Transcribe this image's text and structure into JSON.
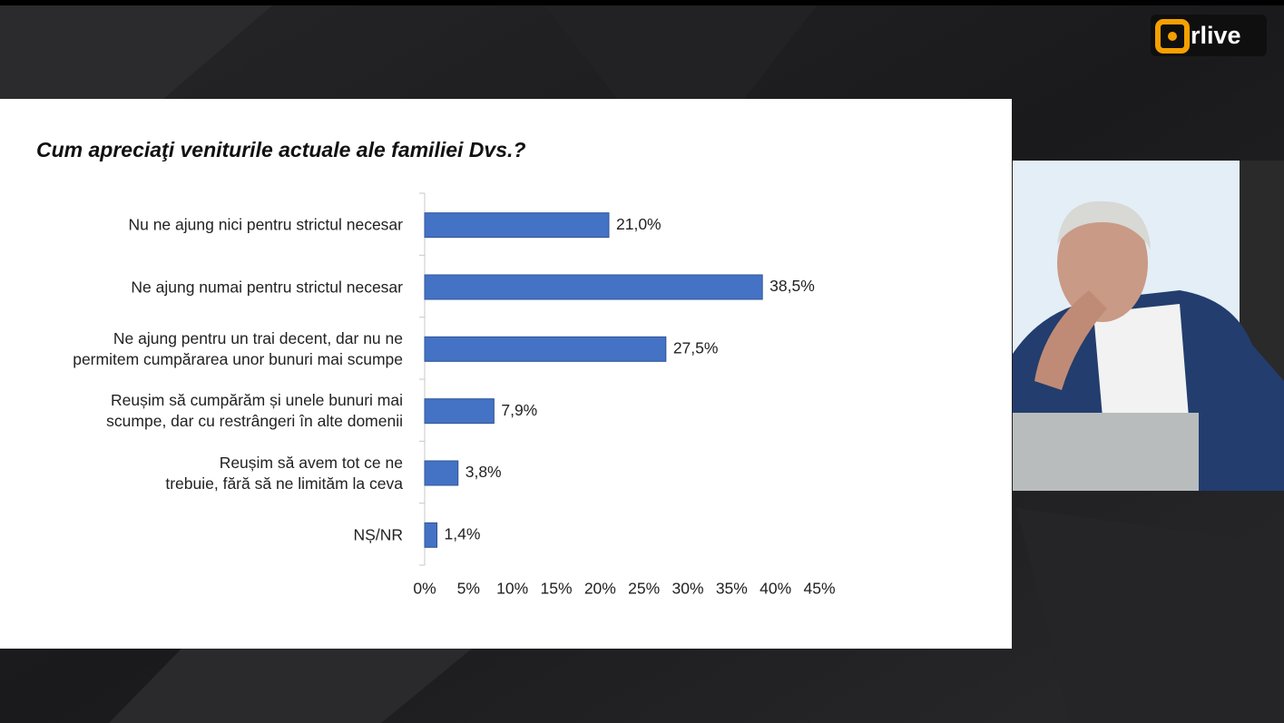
{
  "brand": "rlive",
  "chart_data": {
    "type": "bar",
    "title": "Cum apreciaţi veniturile actuale ale familiei Dvs.?",
    "categories": [
      "Nu ne ajung nici pentru strictul necesar",
      "Ne ajung numai pentru strictul necesar",
      "Ne ajung pentru un trai decent, dar nu ne permitem cumpărarea unor bunuri mai scumpe",
      "Reușim să cumpărăm și unele bunuri mai scumpe, dar cu restrângeri în alte domenii",
      "Reușim să avem tot ce ne trebuie, fără să ne limităm la ceva",
      "NȘ/NR"
    ],
    "values": [
      21.0,
      38.5,
      27.5,
      7.9,
      3.8,
      1.4
    ],
    "value_labels": [
      "21,0%",
      "38,5%",
      "27,5%",
      "7,9%",
      "3,8%",
      "1,4%"
    ],
    "color": "#4472c4",
    "xlim": [
      0,
      45
    ],
    "xticks": [
      {
        "value": 0,
        "label": "0%"
      },
      {
        "value": 5,
        "label": "5%"
      },
      {
        "value": 10,
        "label": "10%"
      },
      {
        "value": 15,
        "label": "15%"
      },
      {
        "value": 20,
        "label": "20%"
      },
      {
        "value": 25,
        "label": "25%"
      },
      {
        "value": 30,
        "label": "30%"
      },
      {
        "value": 35,
        "label": "35%"
      },
      {
        "value": 40,
        "label": "40%"
      },
      {
        "value": 45,
        "label": "45%"
      }
    ],
    "grid": false
  }
}
